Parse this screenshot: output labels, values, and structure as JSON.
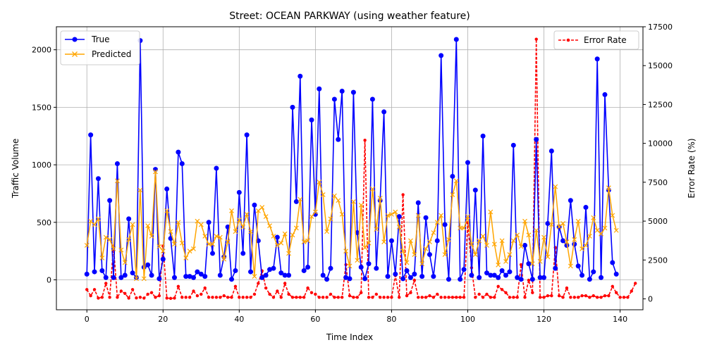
{
  "chart_data": {
    "type": "line",
    "title": "Street: OCEAN PARKWAY (using weather feature)",
    "xlabel": "Time Index",
    "ylabel": "Traffic Volume",
    "y2label": "Error Rate (%)",
    "xlim": [
      -8,
      146
    ],
    "ylim": [
      -260,
      2200
    ],
    "y2lim": [
      -700,
      17500
    ],
    "xticks": [
      0,
      20,
      40,
      60,
      80,
      100,
      120,
      140
    ],
    "yticks": [
      0,
      500,
      1000,
      1500,
      2000
    ],
    "y2ticks": [
      0,
      2500,
      5000,
      7500,
      10000,
      12500,
      15000,
      17500
    ],
    "grid": true,
    "legend_left": "top-left",
    "legend_right": "top-right",
    "colors": {
      "true": "#0000ff",
      "predicted": "#ffa500",
      "error": "#ff0000"
    },
    "series": [
      {
        "name": "True",
        "axis": "left",
        "values": [
          50,
          1260,
          70,
          880,
          80,
          20,
          690,
          20,
          1010,
          20,
          40,
          530,
          60,
          20,
          2080,
          110,
          130,
          40,
          960,
          10,
          180,
          790,
          360,
          20,
          1110,
          1010,
          30,
          30,
          20,
          70,
          50,
          30,
          500,
          230,
          970,
          40,
          200,
          460,
          5,
          80,
          760,
          230,
          1260,
          70,
          650,
          340,
          20,
          40,
          90,
          100,
          370,
          60,
          40,
          40,
          1500,
          680,
          1770,
          80,
          110,
          1390,
          570,
          1660,
          40,
          5,
          100,
          1570,
          1220,
          1640,
          20,
          10,
          1630,
          410,
          110,
          10,
          140,
          1570,
          100,
          690,
          1460,
          30,
          340,
          50,
          550,
          10,
          80,
          20,
          50,
          670,
          30,
          540,
          220,
          30,
          340,
          1950,
          480,
          5,
          900,
          2090,
          5,
          90,
          1020,
          40,
          780,
          20,
          1250,
          60,
          40,
          40,
          20,
          80,
          40,
          70,
          1170,
          20,
          5,
          300,
          140,
          5,
          1220,
          20,
          20,
          490,
          1120,
          100,
          460,
          340,
          300,
          690,
          310,
          120,
          40,
          630,
          5,
          70,
          1920,
          20,
          1610,
          780,
          150,
          50
        ]
      },
      {
        "name": "Predicted",
        "axis": "left",
        "values": [
          300,
          510,
          480,
          530,
          190,
          370,
          350,
          270,
          860,
          260,
          150,
          350,
          480,
          10,
          780,
          10,
          470,
          380,
          940,
          290,
          250,
          600,
          420,
          310,
          500,
          320,
          190,
          250,
          270,
          510,
          480,
          380,
          310,
          310,
          380,
          370,
          180,
          330,
          600,
          420,
          520,
          460,
          570,
          420,
          30,
          600,
          630,
          550,
          470,
          380,
          300,
          320,
          400,
          230,
          390,
          450,
          700,
          330,
          340,
          550,
          590,
          850,
          740,
          420,
          530,
          730,
          690,
          570,
          250,
          120,
          680,
          170,
          650,
          280,
          320,
          790,
          440,
          710,
          330,
          560,
          570,
          590,
          460,
          250,
          150,
          340,
          220,
          560,
          140,
          270,
          330,
          410,
          500,
          560,
          220,
          350,
          740,
          860,
          450,
          450,
          550,
          310,
          220,
          340,
          380,
          300,
          590,
          310,
          130,
          340,
          160,
          220,
          340,
          390,
          290,
          510,
          390,
          140,
          430,
          160,
          370,
          200,
          480,
          810,
          460,
          490,
          330,
          120,
          350,
          510,
          270,
          300,
          380,
          540,
          430,
          400,
          450,
          800,
          560,
          430
        ]
      },
      {
        "name": "Error Rate",
        "axis": "right",
        "values": [
          600,
          200,
          600,
          50,
          100,
          1000,
          100,
          3400,
          100,
          500,
          350,
          50,
          600,
          60,
          100,
          50,
          300,
          400,
          100,
          200,
          3400,
          50,
          30,
          50,
          800,
          100,
          100,
          100,
          500,
          200,
          300,
          700,
          100,
          100,
          100,
          100,
          200,
          100,
          100,
          800,
          100,
          100,
          100,
          100,
          300,
          1000,
          1800,
          700,
          300,
          100,
          500,
          100,
          1000,
          300,
          100,
          100,
          100,
          100,
          700,
          400,
          300,
          100,
          100,
          100,
          300,
          100,
          100,
          100,
          2200,
          200,
          100,
          100,
          400,
          10200,
          100,
          100,
          300,
          100,
          100,
          100,
          100,
          1500,
          100,
          6700,
          200,
          400,
          1200,
          100,
          100,
          100,
          200,
          100,
          300,
          100,
          100,
          100,
          100,
          100,
          100,
          100,
          4900,
          2000,
          100,
          300,
          100,
          300,
          100,
          100,
          800,
          600,
          400,
          100,
          100,
          100,
          2200,
          100,
          1200,
          400,
          16700,
          100,
          100,
          200,
          200,
          3300,
          200,
          100,
          700,
          100,
          100,
          100,
          200,
          200,
          100,
          200,
          100,
          100,
          200,
          200,
          800,
          400,
          100,
          100,
          100,
          500,
          1000
        ]
      }
    ]
  }
}
